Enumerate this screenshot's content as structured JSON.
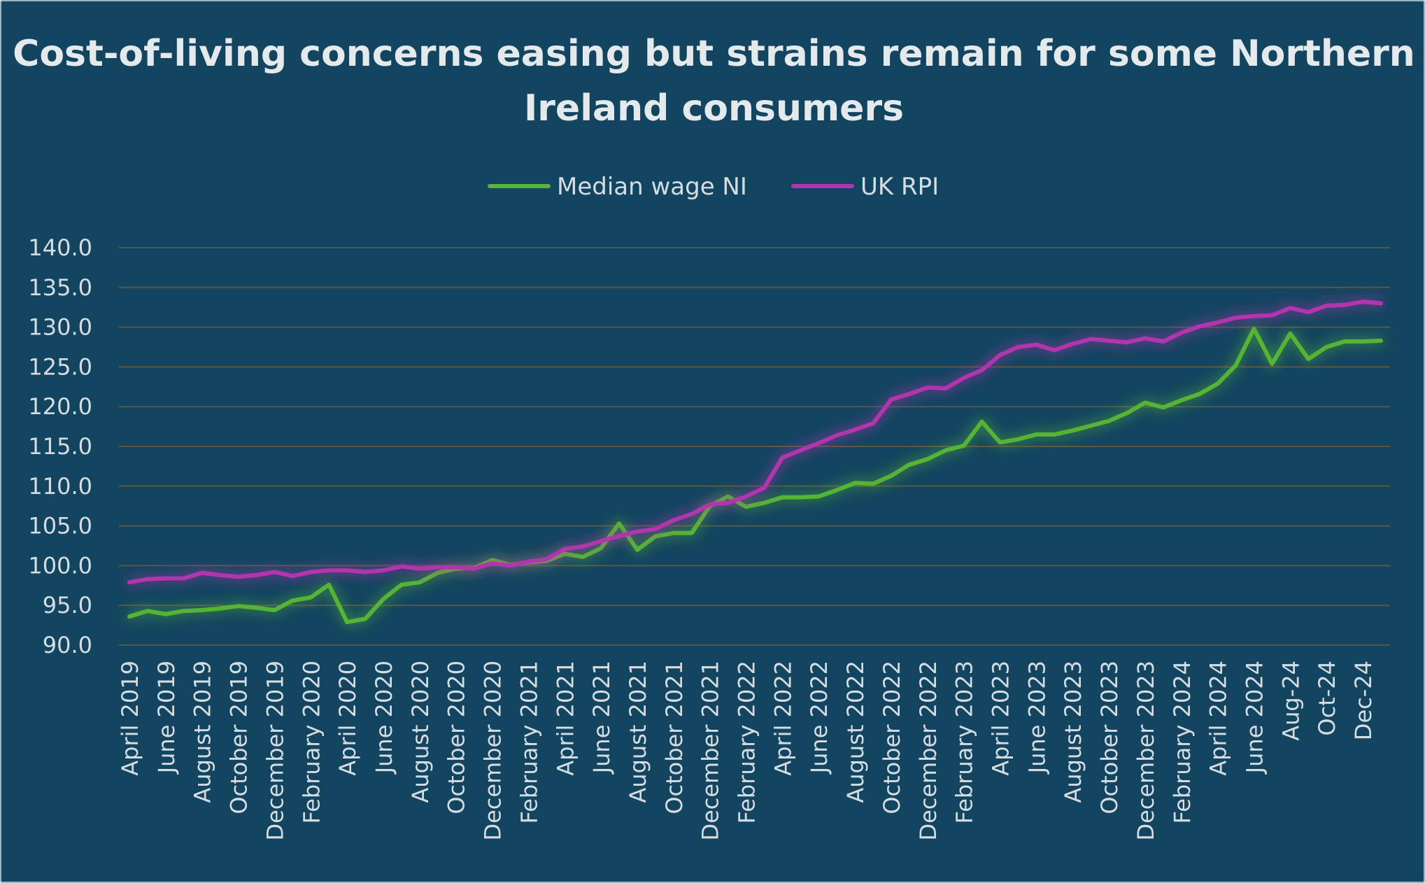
{
  "colors": {
    "background": "#134560",
    "wage_series": "#57b435",
    "rpi_series": "#b234ae",
    "grid": "#55594a",
    "text": "#d5dde2"
  },
  "chart_data": {
    "type": "line",
    "title": "Cost-of-living concerns easing  but strains remain for some Northern Ireland consumers",
    "xlabel": "",
    "ylabel": "",
    "ylim": [
      90,
      140
    ],
    "yticks": [
      90,
      95,
      100,
      105,
      110,
      115,
      120,
      125,
      130,
      135,
      140
    ],
    "grid": true,
    "legend_position": "top",
    "x": [
      "April 2019",
      "May 2019",
      "June 2019",
      "July 2019",
      "August 2019",
      "September 2019",
      "October 2019",
      "November 2019",
      "December 2019",
      "January 2020",
      "February 2020",
      "March 2020",
      "April 2020",
      "May 2020",
      "June 2020",
      "July 2020",
      "August 2020",
      "September 2020",
      "October 2020",
      "November 2020",
      "December 2020",
      "January 2021",
      "February 2021",
      "March 2021",
      "April 2021",
      "May 2021",
      "June 2021",
      "July 2021",
      "August 2021",
      "September 2021",
      "October 2021",
      "November 2021",
      "December 2021",
      "January 2022",
      "February 2022",
      "March 2022",
      "April 2022",
      "May 2022",
      "June 2022",
      "July 2022",
      "August 2022",
      "September 2022",
      "October 2022",
      "November 2022",
      "December 2022",
      "January 2023",
      "February 2023",
      "March 2023",
      "April 2023",
      "May 2023",
      "June 2023",
      "July 2023",
      "August 2023",
      "September 2023",
      "October 2023",
      "November 2023",
      "December 2023",
      "January 2024",
      "February 2024",
      "March 2024",
      "April 2024",
      "May 2024",
      "June 2024",
      "Jul-24",
      "Aug-24",
      "Sep-24",
      "Oct-24",
      "Nov-24",
      "Dec-24",
      "Jan-25"
    ],
    "tick_labels_shown_every": 2,
    "series": [
      {
        "name": "Median wage NI",
        "values": [
          93.6,
          94.3,
          93.9,
          94.3,
          94.4,
          94.6,
          94.9,
          94.7,
          94.4,
          95.6,
          96.0,
          97.6,
          92.9,
          93.3,
          95.8,
          97.6,
          97.9,
          99.1,
          99.6,
          99.7,
          100.7,
          100.1,
          100.4,
          100.6,
          101.5,
          101.1,
          102.2,
          105.3,
          102.0,
          103.7,
          104.1,
          104.1,
          107.5,
          108.7,
          107.4,
          107.9,
          108.6,
          108.6,
          108.7,
          109.5,
          110.4,
          110.3,
          111.3,
          112.7,
          113.4,
          114.5,
          115.1,
          118.1,
          115.5,
          115.9,
          116.5,
          116.5,
          117.0,
          117.6,
          118.2,
          119.2,
          120.5,
          119.9,
          120.8,
          121.6,
          122.9,
          125.2,
          129.8,
          125.4,
          129.2,
          126.0,
          127.5,
          128.2,
          128.2,
          128.3
        ]
      },
      {
        "name": "UK RPI",
        "values": [
          97.9,
          98.3,
          98.4,
          98.4,
          99.1,
          98.8,
          98.6,
          98.8,
          99.2,
          98.7,
          99.2,
          99.4,
          99.4,
          99.2,
          99.4,
          99.9,
          99.6,
          99.8,
          99.8,
          99.6,
          100.3,
          100.0,
          100.5,
          100.8,
          102.1,
          102.4,
          103.1,
          103.7,
          104.3,
          104.6,
          105.7,
          106.5,
          107.7,
          107.9,
          108.7,
          109.8,
          113.6,
          114.5,
          115.4,
          116.4,
          117.1,
          117.9,
          120.9,
          121.6,
          122.4,
          122.3,
          123.6,
          124.6,
          126.5,
          127.5,
          127.8,
          127.1,
          127.9,
          128.5,
          128.3,
          128.1,
          128.6,
          128.2,
          129.3,
          130.1,
          130.6,
          131.2,
          131.4,
          131.5,
          132.4,
          131.9,
          132.7,
          132.8,
          133.2,
          133.0
        ]
      }
    ]
  }
}
